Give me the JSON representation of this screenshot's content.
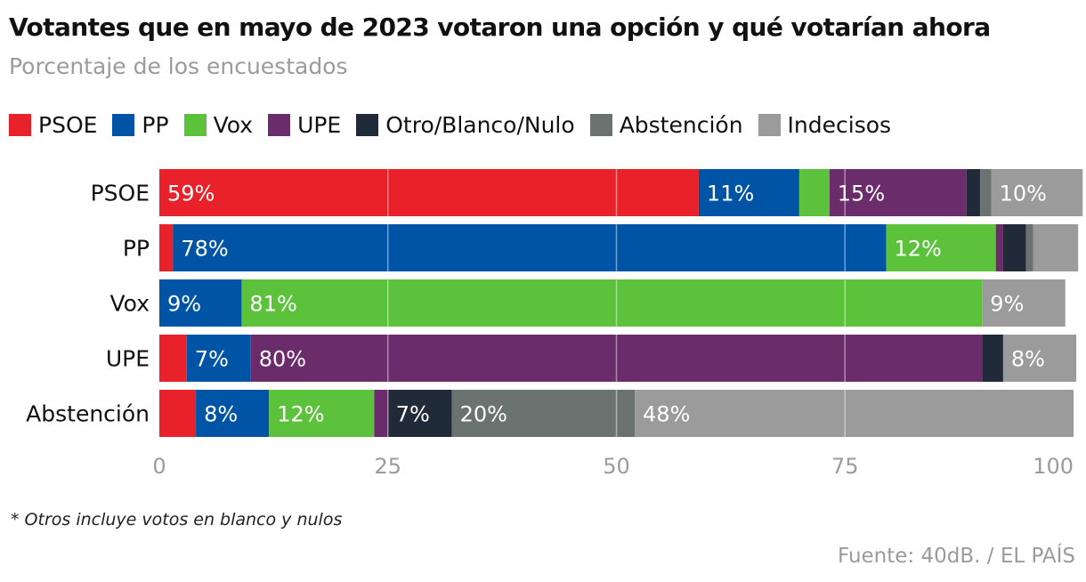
{
  "chart_data": {
    "type": "bar",
    "orientation": "horizontal",
    "stacked": true,
    "title": "Votantes que en mayo de 2023 votaron una opción y qué votarían ahora",
    "subtitle": "Porcentaje de los encuestados",
    "xlim": [
      0,
      100
    ],
    "xticks": [
      0,
      25,
      50,
      75,
      100
    ],
    "grid": true,
    "legend_position": "top",
    "categories": [
      "PSOE",
      "PP",
      "Vox",
      "UPE",
      "Abstención"
    ],
    "series": [
      {
        "name": "PSOE",
        "color": "#e8212b",
        "values": [
          59,
          1.5,
          0,
          3,
          4
        ],
        "labels": [
          "59%",
          "",
          "",
          "",
          ""
        ]
      },
      {
        "name": "PP",
        "color": "#0054a6",
        "values": [
          11,
          78,
          9,
          7,
          8
        ],
        "labels": [
          "11%",
          "78%",
          "9%",
          "7%",
          "8%"
        ]
      },
      {
        "name": "Vox",
        "color": "#5cc13b",
        "values": [
          3.3,
          12,
          81,
          0,
          11.5
        ],
        "labels": [
          "",
          "12%",
          "81%",
          "",
          "12%"
        ]
      },
      {
        "name": "UPE",
        "color": "#6a2c6a",
        "values": [
          15,
          0.8,
          0,
          80,
          1.5
        ],
        "labels": [
          "15%",
          "",
          "",
          "80%",
          ""
        ]
      },
      {
        "name": "Otro/Blanco/Nulo",
        "color": "#212a38",
        "values": [
          1.5,
          2.5,
          0,
          2.3,
          7
        ],
        "labels": [
          "",
          "",
          "",
          "",
          "7%"
        ]
      },
      {
        "name": "Abstención",
        "color": "#6b7370",
        "values": [
          1.2,
          0.8,
          0,
          0,
          20
        ],
        "labels": [
          "",
          "",
          "",
          "",
          "20%"
        ]
      },
      {
        "name": "Indecisos",
        "color": "#9b9b9b",
        "values": [
          10,
          4.9,
          9.1,
          8,
          48
        ],
        "labels": [
          "10%",
          "",
          "9%",
          "8%",
          "48%"
        ]
      }
    ]
  },
  "footnote": "* Otros incluye votos en blanco y nulos",
  "source": "Fuente: 40dB. / EL PAÍS"
}
